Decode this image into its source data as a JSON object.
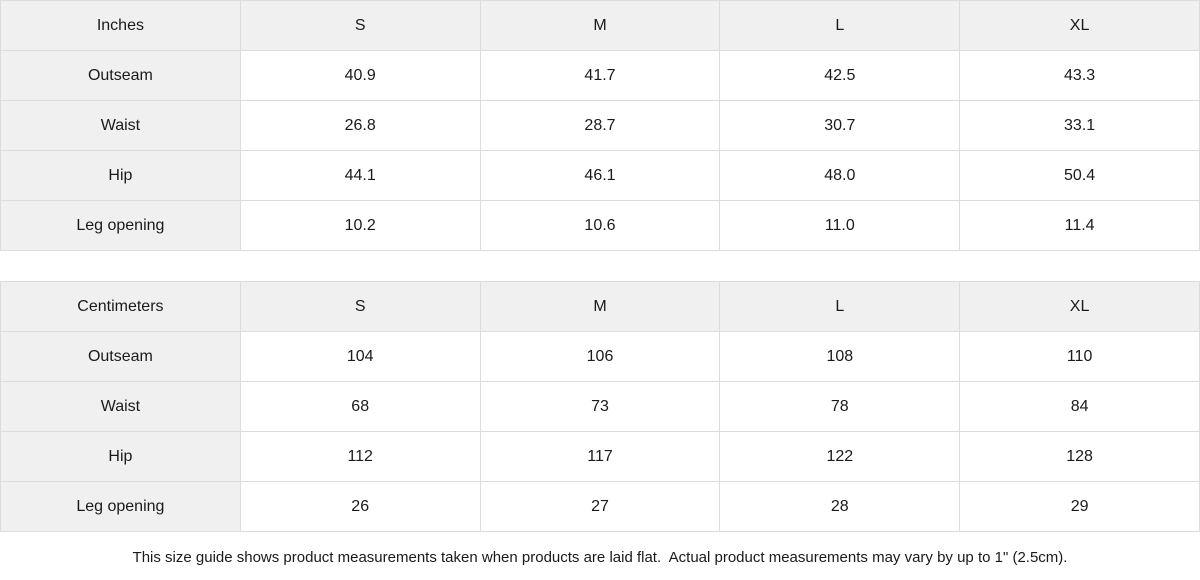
{
  "colors": {
    "header_background": "#f0f0f0",
    "label_column_background": "#f0f0f0",
    "cell_background": "#ffffff",
    "border": "#dcdcdc",
    "text": "#1a1a1a"
  },
  "chart_data": [
    {
      "type": "table",
      "unit_label": "Inches",
      "size_headers": [
        "S",
        "M",
        "L",
        "XL"
      ],
      "rows": [
        {
          "label": "Outseam",
          "values": [
            "40.9",
            "41.7",
            "42.5",
            "43.3"
          ]
        },
        {
          "label": "Waist",
          "values": [
            "26.8",
            "28.7",
            "30.7",
            "33.1"
          ]
        },
        {
          "label": "Hip",
          "values": [
            "44.1",
            "46.1",
            "48.0",
            "50.4"
          ]
        },
        {
          "label": "Leg opening",
          "values": [
            "10.2",
            "10.6",
            "11.0",
            "11.4"
          ]
        }
      ]
    },
    {
      "type": "table",
      "unit_label": "Centimeters",
      "size_headers": [
        "S",
        "M",
        "L",
        "XL"
      ],
      "rows": [
        {
          "label": "Outseam",
          "values": [
            "104",
            "106",
            "108",
            "110"
          ]
        },
        {
          "label": "Waist",
          "values": [
            "68",
            "73",
            "78",
            "84"
          ]
        },
        {
          "label": "Hip",
          "values": [
            "112",
            "117",
            "122",
            "128"
          ]
        },
        {
          "label": "Leg opening",
          "values": [
            "26",
            "27",
            "28",
            "29"
          ]
        }
      ]
    }
  ],
  "footer": {
    "note": "This size guide shows product measurements taken when products are laid flat.  Actual product measurements may vary by up to 1\" (2.5cm)."
  }
}
